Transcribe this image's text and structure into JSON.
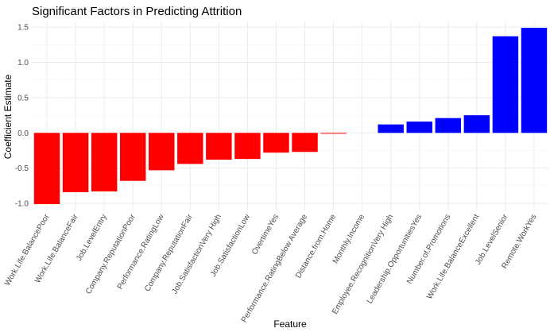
{
  "chart_data": {
    "type": "bar",
    "title": "Significant Factors in Predicting Attrition",
    "xlabel": "Feature",
    "ylabel": "Coefficient Estimate",
    "ylim": [
      -1.1,
      1.58
    ],
    "yticks": [
      "-1.0",
      "-0.5",
      "0.0",
      "0.5",
      "1.0",
      "1.5"
    ],
    "ytick_values": [
      -1.0,
      -0.5,
      0.0,
      0.5,
      1.0,
      1.5
    ],
    "grid": true,
    "legend": "none",
    "colors": {
      "negative": "#ff0000",
      "positive": "#0000ff",
      "grid": "#ebebeb",
      "background": "#ffffff"
    },
    "categories": [
      "Work.Life.BalancePoor",
      "Work.Life.BalanceFair",
      "Job.LevelEntry",
      "Company.ReputationPoor",
      "Performance.RatingLow",
      "Company.ReputationFair",
      "Job.SatisfactionVery High",
      "Job.SatisfactionLow",
      "OvertimeYes",
      "Performance.RatingBelow Average",
      "Distance.from.Home",
      "Monthly.Income",
      "Employee.RecognitionVery High",
      "Leadership.OpportunitiesYes",
      "Number.of.Promotions",
      "Work.Life.BalanceExcellent",
      "Job.LevelSenior",
      "Remote.WorkYes"
    ],
    "values": [
      -1.01,
      -0.84,
      -0.83,
      -0.68,
      -0.53,
      -0.44,
      -0.38,
      -0.37,
      -0.28,
      -0.27,
      -0.01,
      0.0,
      0.12,
      0.16,
      0.21,
      0.25,
      1.37,
      1.49
    ]
  }
}
